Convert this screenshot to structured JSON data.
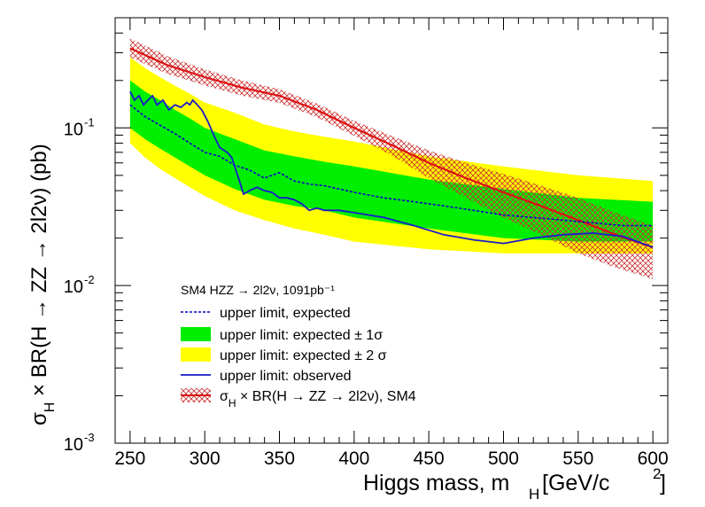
{
  "chart_data": {
    "type": "line",
    "title": "",
    "subtitle": "SM4 HZZ → 2l2ν, 1091pb⁻¹",
    "xlabel": "Higgs mass, m_H [GeV/c²]",
    "ylabel": "σ_H × BR(H → ZZ → 2l2ν) (pb)",
    "xlim": [
      240,
      610
    ],
    "ylim": [
      0.001,
      0.5
    ],
    "yscale": "log",
    "legend_position": "bottom-left",
    "x_ticks": [
      250,
      300,
      350,
      400,
      450,
      500,
      550,
      600
    ],
    "x_tick_labels": [
      "250",
      "300",
      "350",
      "400",
      "450",
      "500",
      "550",
      "600"
    ],
    "y_ticks": [
      0.1,
      0.01,
      0.001
    ],
    "y_tick_labels": [
      {
        "base": "10",
        "exp": "-1"
      },
      {
        "base": "10",
        "exp": "-2"
      },
      {
        "base": "10",
        "exp": "-3"
      }
    ],
    "legend": [
      {
        "key": "expected",
        "label": "upper limit, expected"
      },
      {
        "key": "band1",
        "label": "upper limit: expected ± 1σ"
      },
      {
        "key": "band2",
        "label": "upper limit: expected ± 2 σ"
      },
      {
        "key": "observed",
        "label": "upper limit: observed"
      },
      {
        "key": "sm4",
        "label": "σ_H × BR(H → ZZ → 2l2ν), SM4"
      }
    ],
    "series": [
      {
        "name": "upper limit: observed",
        "x": [
          250,
          253,
          256,
          259,
          262,
          265,
          268,
          272,
          276,
          280,
          284,
          288,
          290,
          292,
          295,
          298,
          302,
          306,
          310,
          315,
          318,
          322,
          326,
          330,
          335,
          340,
          345,
          350,
          355,
          360,
          365,
          370,
          375,
          380,
          390,
          400,
          420,
          440,
          460,
          480,
          500,
          520,
          540,
          560,
          580,
          600
        ],
        "y": [
          0.17,
          0.15,
          0.16,
          0.14,
          0.15,
          0.16,
          0.14,
          0.15,
          0.13,
          0.14,
          0.135,
          0.145,
          0.14,
          0.15,
          0.14,
          0.13,
          0.11,
          0.09,
          0.075,
          0.07,
          0.065,
          0.05,
          0.038,
          0.04,
          0.042,
          0.04,
          0.039,
          0.036,
          0.036,
          0.035,
          0.033,
          0.03,
          0.031,
          0.03,
          0.03,
          0.029,
          0.027,
          0.024,
          0.021,
          0.0195,
          0.0185,
          0.02,
          0.021,
          0.0215,
          0.0205,
          0.0175
        ]
      },
      {
        "name": "upper limit, expected",
        "x": [
          250,
          260,
          270,
          280,
          290,
          300,
          310,
          320,
          330,
          340,
          350,
          360,
          370,
          380,
          390,
          400,
          420,
          440,
          460,
          480,
          500,
          520,
          540,
          560,
          580,
          600
        ],
        "y": [
          0.14,
          0.118,
          0.104,
          0.092,
          0.08,
          0.07,
          0.066,
          0.058,
          0.054,
          0.048,
          0.052,
          0.046,
          0.044,
          0.043,
          0.041,
          0.039,
          0.036,
          0.034,
          0.032,
          0.03,
          0.028,
          0.027,
          0.026,
          0.025,
          0.024,
          0.024
        ]
      },
      {
        "name": "upper limit: expected ± 1σ",
        "x": [
          250,
          260,
          270,
          280,
          290,
          300,
          320,
          340,
          360,
          380,
          400,
          450,
          500,
          550,
          600
        ],
        "low": [
          0.1,
          0.085,
          0.074,
          0.065,
          0.057,
          0.05,
          0.041,
          0.035,
          0.032,
          0.03,
          0.027,
          0.023,
          0.02,
          0.019,
          0.019
        ],
        "high": [
          0.2,
          0.17,
          0.15,
          0.13,
          0.115,
          0.1,
          0.085,
          0.072,
          0.066,
          0.061,
          0.057,
          0.047,
          0.041,
          0.036,
          0.034
        ]
      },
      {
        "name": "upper limit: expected ± 2 σ",
        "x": [
          250,
          260,
          270,
          280,
          290,
          300,
          320,
          340,
          360,
          380,
          400,
          450,
          500,
          550,
          600
        ],
        "low": [
          0.08,
          0.065,
          0.055,
          0.048,
          0.042,
          0.037,
          0.03,
          0.026,
          0.023,
          0.021,
          0.019,
          0.017,
          0.016,
          0.016,
          0.016
        ],
        "high": [
          0.28,
          0.24,
          0.21,
          0.185,
          0.165,
          0.145,
          0.125,
          0.105,
          0.095,
          0.088,
          0.082,
          0.066,
          0.057,
          0.05,
          0.046
        ]
      },
      {
        "name": "σ_H × BR(H → ZZ → 2l2ν), SM4",
        "x": [
          250,
          275,
          300,
          325,
          350,
          375,
          400,
          425,
          450,
          475,
          500,
          525,
          550,
          575,
          600
        ],
        "y": [
          0.32,
          0.25,
          0.21,
          0.18,
          0.16,
          0.13,
          0.1,
          0.078,
          0.06,
          0.048,
          0.039,
          0.032,
          0.026,
          0.021,
          0.0175
        ],
        "low": [
          0.28,
          0.22,
          0.186,
          0.16,
          0.144,
          0.117,
          0.089,
          0.067,
          0.048,
          0.036,
          0.027,
          0.021,
          0.016,
          0.013,
          0.011
        ],
        "high": [
          0.37,
          0.285,
          0.235,
          0.2,
          0.176,
          0.143,
          0.111,
          0.089,
          0.072,
          0.06,
          0.051,
          0.043,
          0.036,
          0.029,
          0.024
        ]
      }
    ],
    "colors": {
      "band2": "#ffff00",
      "band1": "#00ee00",
      "expected": "#0000cc",
      "observed": "#1a1acc",
      "sm4_line": "#dd1111",
      "sm4_hatch": "#cc3333",
      "axis": "#000000"
    }
  }
}
